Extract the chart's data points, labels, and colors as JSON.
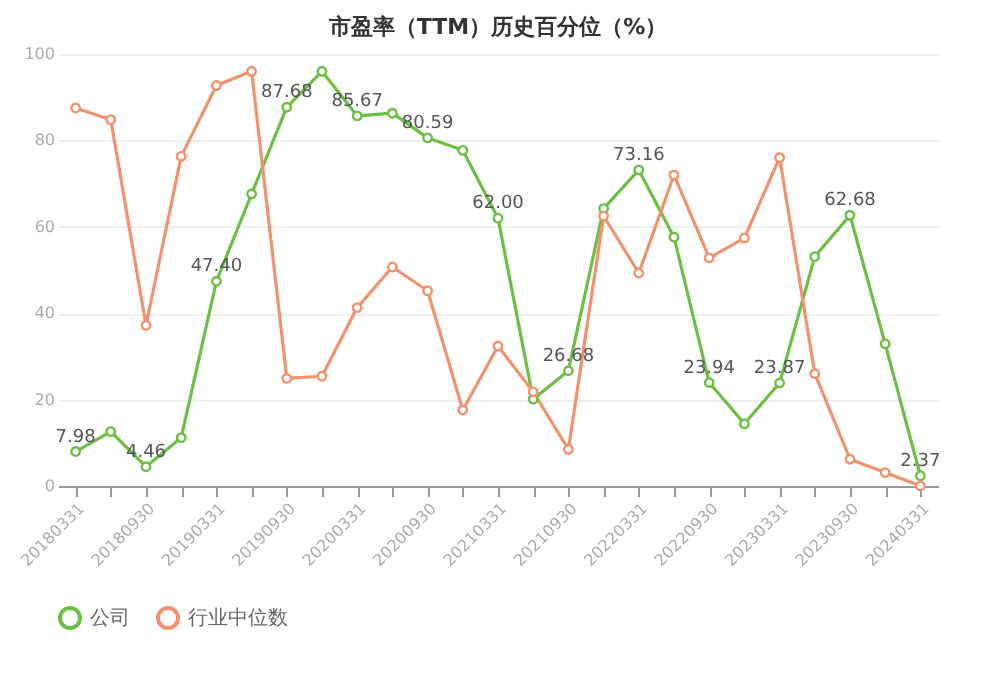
{
  "chart_data": {
    "type": "line",
    "title": "市盈率（TTM）历史百分位（%）",
    "categories": [
      "20180331",
      null,
      "20180930",
      null,
      "20190331",
      null,
      "20190930",
      null,
      "20200331",
      null,
      "20200930",
      null,
      "20210331",
      null,
      "20210930",
      null,
      "20220331",
      null,
      "20220930",
      null,
      "20230331",
      null,
      "20230930",
      null,
      "20240331"
    ],
    "series": [
      {
        "name": "公司",
        "color": "#6dbe45",
        "values": [
          7.98,
          12.6,
          4.46,
          11.2,
          47.4,
          67.6,
          87.68,
          96.0,
          85.67,
          86.3,
          80.59,
          77.7,
          62.0,
          20.1,
          26.68,
          64.2,
          73.16,
          57.6,
          23.94,
          14.4,
          23.87,
          53.1,
          62.68,
          32.9,
          2.37
        ],
        "value_labels": [
          "7.98",
          null,
          "4.46",
          null,
          "47.40",
          null,
          "87.68",
          null,
          "85.67",
          null,
          "80.59",
          null,
          "62.00",
          null,
          "26.68",
          null,
          "73.16",
          null,
          "23.94",
          null,
          "23.87",
          null,
          "62.68",
          null,
          "2.37"
        ]
      },
      {
        "name": "行业中位数",
        "color": "#f0926d",
        "values": [
          87.5,
          84.8,
          37.2,
          76.3,
          92.7,
          96.0,
          24.9,
          25.4,
          41.3,
          50.7,
          45.2,
          17.6,
          32.4,
          21.8,
          8.5,
          62.5,
          49.3,
          72.0,
          52.8,
          57.4,
          76.0,
          26.0,
          6.2,
          3.1,
          0
        ]
      }
    ],
    "ylim": [
      0,
      100
    ],
    "yticks": [
      0,
      20,
      40,
      60,
      80,
      100
    ],
    "grid": "y",
    "legend": "bottom",
    "marker": "circle"
  }
}
